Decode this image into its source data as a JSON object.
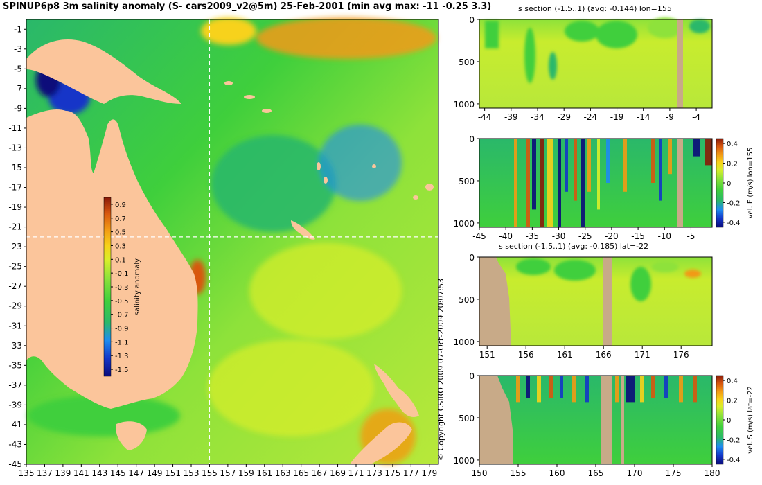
{
  "title": "SPINUP6p8 3m salinity anomaly (S- cars2009_v2@5m) 25-Feb-2001 (min avg max: -11 -0.25 3.3)",
  "copyright": "© Copyright CSIRO 2009   07-Oct-2009 20:07:53",
  "chart_data": [
    {
      "type": "heatmap",
      "name": "map",
      "x_ticks": [
        "135",
        "137",
        "139",
        "141",
        "143",
        "145",
        "147",
        "149",
        "151",
        "153",
        "155",
        "157",
        "159",
        "161",
        "163",
        "165",
        "167",
        "169",
        "171",
        "173",
        "175",
        "177",
        "179"
      ],
      "y_ticks": [
        "-1",
        "-3",
        "-5",
        "-7",
        "-9",
        "-11",
        "-13",
        "-15",
        "-17",
        "-19",
        "-21",
        "-23",
        "-25",
        "-27",
        "-29",
        "-31",
        "-33",
        "-35",
        "-37",
        "-39",
        "-41",
        "-43",
        "-45"
      ],
      "xlim": [
        135,
        180
      ],
      "ylim": [
        -45,
        0
      ],
      "section_lon": 155,
      "section_lat": -22,
      "colorbar": {
        "label": "salinity anomaly",
        "ticks": [
          "0.9",
          "0.7",
          "0.5",
          "0.3",
          "0.1",
          "-0.1",
          "-0.3",
          "-0.5",
          "-0.7",
          "-0.9",
          "-1.1",
          "-1.3",
          "-1.5"
        ],
        "range": [
          -1.6,
          1.0
        ]
      }
    },
    {
      "type": "heatmap",
      "name": "s-section-lon",
      "title": "s section (-1.5..1) (avg: -0.144) lon=155",
      "x_ticks": [
        "-44",
        "-39",
        "-34",
        "-29",
        "-24",
        "-19",
        "-14",
        "-9",
        "-4"
      ],
      "xlim": [
        -45,
        -1
      ],
      "y_ticks": [
        "0",
        "500",
        "1000"
      ],
      "ylim": [
        0,
        1050
      ]
    },
    {
      "type": "heatmap",
      "name": "vel-e-lon",
      "title": "",
      "x_ticks": [
        "-45",
        "-40",
        "-35",
        "-30",
        "-25",
        "-20",
        "-15",
        "-10",
        "-5"
      ],
      "xlim": [
        -45,
        -1
      ],
      "y_ticks": [
        "0",
        "500",
        "1000"
      ],
      "ylim": [
        0,
        1050
      ],
      "colorbar": {
        "label": "vel. E (m/s) lon=155",
        "ticks": [
          "0.4",
          "0.2",
          "0",
          "-0.2",
          "-0.4"
        ],
        "range": [
          -0.45,
          0.45
        ]
      }
    },
    {
      "type": "heatmap",
      "name": "s-section-lat",
      "title": "s section (-1.5..1) (avg: -0.185) lat=-22",
      "x_ticks": [
        "151",
        "156",
        "161",
        "166",
        "171",
        "176"
      ],
      "xlim": [
        150,
        180
      ],
      "y_ticks": [
        "0",
        "500",
        "1000"
      ],
      "ylim": [
        0,
        1050
      ]
    },
    {
      "type": "heatmap",
      "name": "vel-s-lat",
      "title": "",
      "x_ticks": [
        "150",
        "155",
        "160",
        "165",
        "170",
        "175",
        "180"
      ],
      "xlim": [
        150,
        180
      ],
      "y_ticks": [
        "0",
        "500",
        "1000"
      ],
      "ylim": [
        0,
        1050
      ],
      "colorbar": {
        "label": "vel. S (m/s) lat=-22",
        "ticks": [
          "0.4",
          "0.2",
          "0",
          "-0.2",
          "-0.4"
        ],
        "range": [
          -0.45,
          0.45
        ]
      }
    }
  ],
  "colors": {
    "land": "#fbc59b",
    "seabed": "#c8aa88",
    "colormap": [
      "#0b0b7a",
      "#1336c8",
      "#1e8cf0",
      "#2ab86a",
      "#3fcf3c",
      "#8ee23a",
      "#d8ee2a",
      "#f7d21a",
      "#f29a14",
      "#d8570e",
      "#8a1a08"
    ]
  }
}
